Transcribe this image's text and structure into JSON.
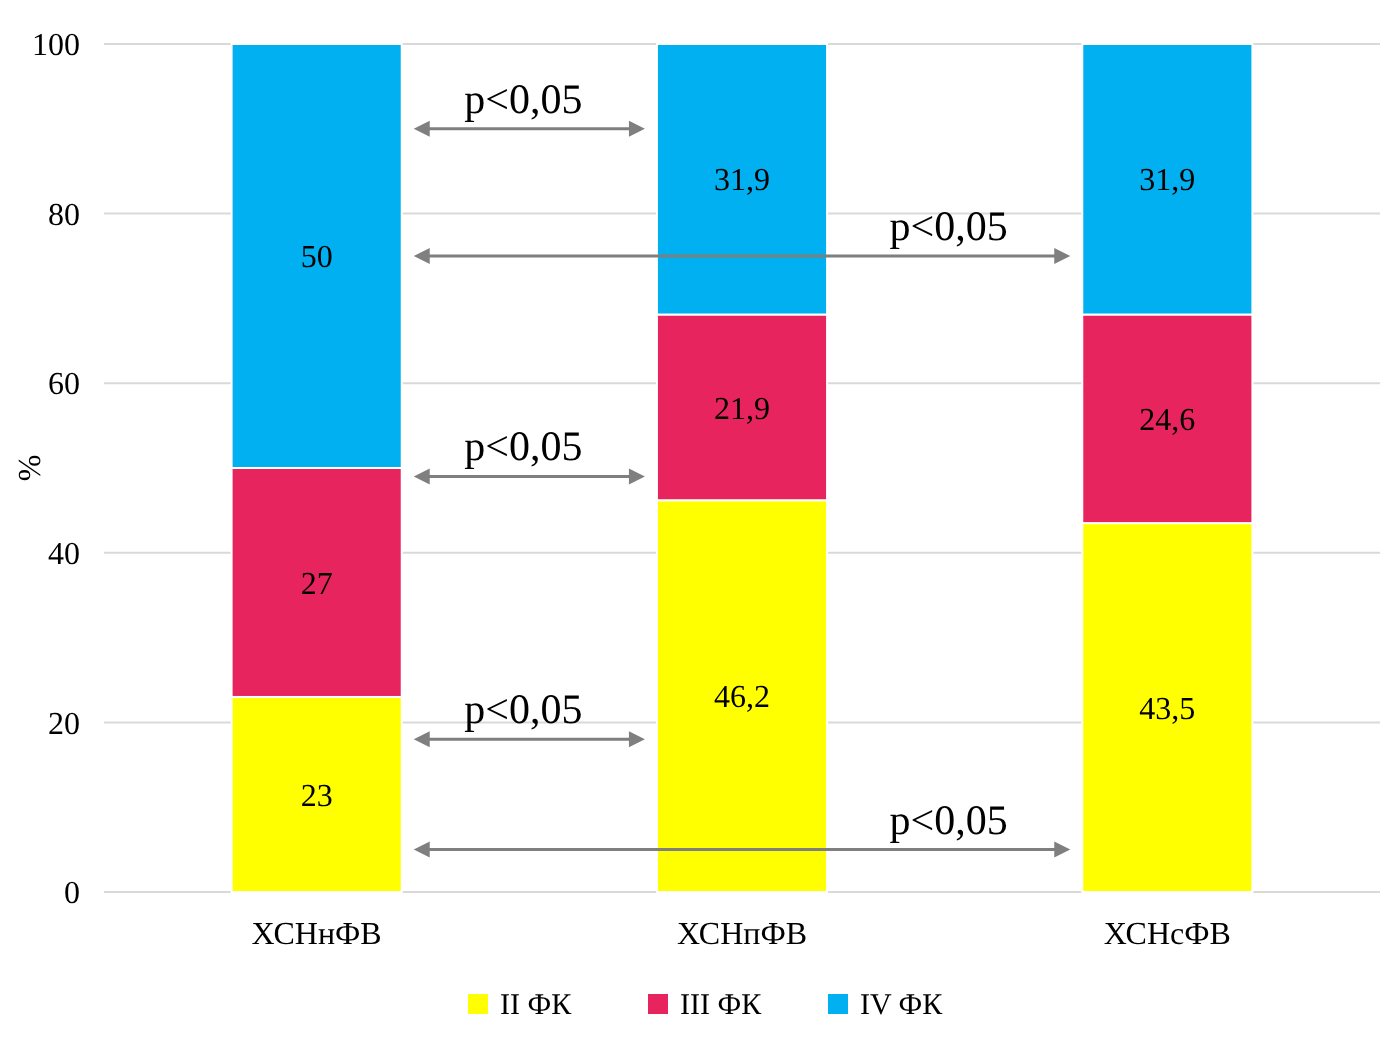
{
  "chart_data": {
    "type": "bar",
    "stacked": true,
    "ylabel": "%",
    "categories": [
      "ХСНнФВ",
      "ХСНпФВ",
      "ХСНсФВ"
    ],
    "series": [
      {
        "name": "II ФК",
        "color": "#ffff00",
        "values": [
          23,
          46.2,
          43.5
        ],
        "value_labels": [
          "23",
          "46,2",
          "43,5"
        ]
      },
      {
        "name": "III ФК",
        "color": "#e8245e",
        "values": [
          27,
          21.9,
          24.6
        ],
        "value_labels": [
          "27",
          "21,9",
          "24,6"
        ]
      },
      {
        "name": "IV ФК",
        "color": "#00b0f0",
        "values": [
          50,
          31.9,
          31.9
        ],
        "value_labels": [
          "50",
          "31,9",
          "31,9"
        ]
      }
    ],
    "ylim": [
      0,
      100
    ],
    "yticks": [
      0,
      20,
      40,
      60,
      80,
      100
    ],
    "grid": "y",
    "legend": "bottom",
    "annotations": [
      "p<0,05",
      "p<0,05",
      "p<0,05",
      "p<0,05",
      "p<0,05"
    ]
  }
}
